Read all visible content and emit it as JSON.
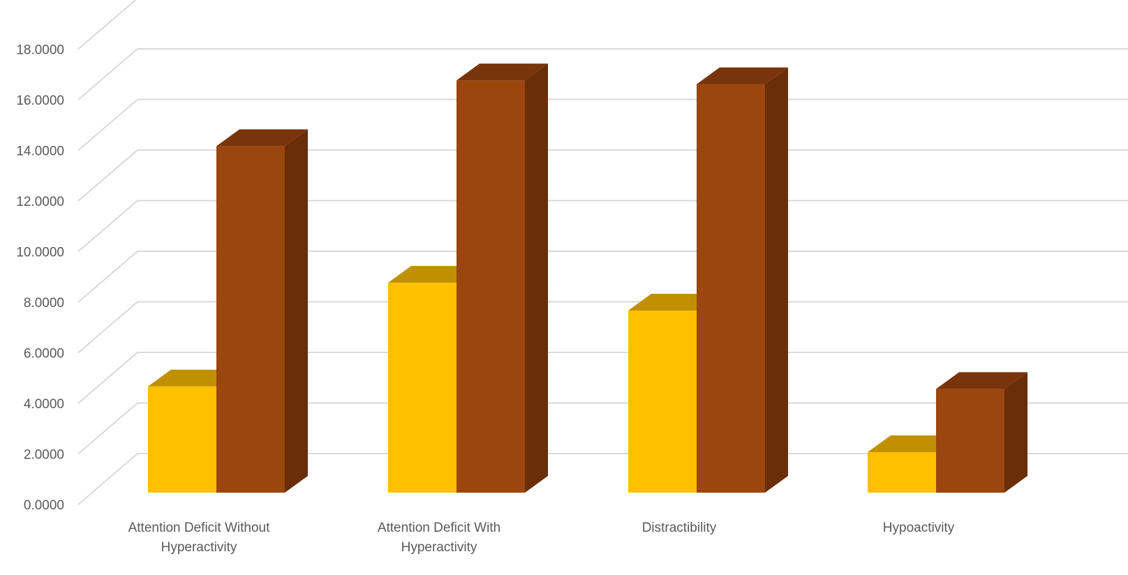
{
  "chart_data": {
    "type": "bar",
    "title": "",
    "xlabel": "",
    "ylabel": "",
    "ylim": [
      0,
      18
    ],
    "ytick_step": 2,
    "ytick_labels": [
      "0.0000",
      "2.0000",
      "4.0000",
      "6.0000",
      "8.0000",
      "10.0000",
      "12.0000",
      "14.0000",
      "16.0000",
      "18.0000"
    ],
    "categories": [
      [
        "Attention Deficit Without",
        "Hyperactivity"
      ],
      [
        "Attention Deficit With",
        "Hyperactivity"
      ],
      [
        "Distractibility"
      ],
      [
        "Hypoactivity"
      ]
    ],
    "series": [
      {
        "values": [
          4.2,
          8.3,
          7.2,
          1.6
        ],
        "color": "#FFC000",
        "top_color": "#C09000",
        "side_color": "#A67C00"
      },
      {
        "values": [
          13.7,
          16.3,
          16.15,
          4.1
        ],
        "color": "#9C460F",
        "top_color": "#7A340B",
        "side_color": "#6A2E08"
      }
    ],
    "grid": true,
    "legend": "none",
    "style": "3d-clustered-column",
    "text_color": "#595959",
    "grid_color": "#D9D9D9"
  }
}
